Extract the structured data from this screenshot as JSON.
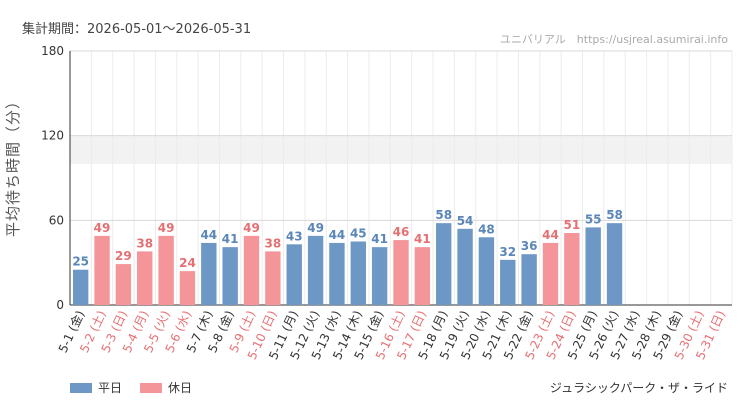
{
  "header": {
    "period": "集計期間：2026-05-01～2026-05-31",
    "watermark": "ユニバリアル　https://usjreal.asumirai.info"
  },
  "footer": {
    "attraction": "ジュラシックパーク・ザ・ライド"
  },
  "colors": {
    "weekday": "#6d97c5",
    "holiday": "#f4959a",
    "weekday_label": "#333333",
    "holiday_label": "#e57074",
    "grid": "#d9d9d9",
    "band": "#f2f2f2"
  },
  "chart_data": {
    "type": "bar",
    "ylabel": "平均待ち時間（分）",
    "ylim": [
      0,
      180
    ],
    "yticks": [
      0,
      60,
      120,
      180
    ],
    "grid": true,
    "legend_position": "bottom-left",
    "series": [
      {
        "name": "平日",
        "key": "weekday"
      },
      {
        "name": "休日",
        "key": "holiday"
      }
    ],
    "categories": [
      "5-1 (金)",
      "5-2 (土)",
      "5-3 (日)",
      "5-4 (月)",
      "5-5 (火)",
      "5-6 (水)",
      "5-7 (木)",
      "5-8 (金)",
      "5-9 (土)",
      "5-10 (日)",
      "5-11 (月)",
      "5-12 (火)",
      "5-13 (水)",
      "5-14 (木)",
      "5-15 (金)",
      "5-16 (土)",
      "5-17 (日)",
      "5-18 (月)",
      "5-19 (火)",
      "5-20 (水)",
      "5-21 (木)",
      "5-22 (金)",
      "5-23 (土)",
      "5-24 (日)",
      "5-25 (月)",
      "5-26 (火)",
      "5-27 (水)",
      "5-28 (木)",
      "5-29 (金)",
      "5-30 (土)",
      "5-31 (日)"
    ],
    "values": [
      25,
      49,
      29,
      38,
      49,
      24,
      44,
      41,
      49,
      38,
      43,
      49,
      44,
      45,
      41,
      46,
      41,
      58,
      54,
      48,
      32,
      36,
      44,
      51,
      55,
      58,
      null,
      null,
      null,
      null,
      null
    ],
    "day_type": [
      "weekday",
      "holiday",
      "holiday",
      "holiday",
      "holiday",
      "holiday",
      "weekday",
      "weekday",
      "holiday",
      "holiday",
      "weekday",
      "weekday",
      "weekday",
      "weekday",
      "weekday",
      "holiday",
      "holiday",
      "weekday",
      "weekday",
      "weekday",
      "weekday",
      "weekday",
      "holiday",
      "holiday",
      "weekday",
      "weekday",
      "weekday",
      "weekday",
      "weekday",
      "holiday",
      "holiday"
    ]
  }
}
